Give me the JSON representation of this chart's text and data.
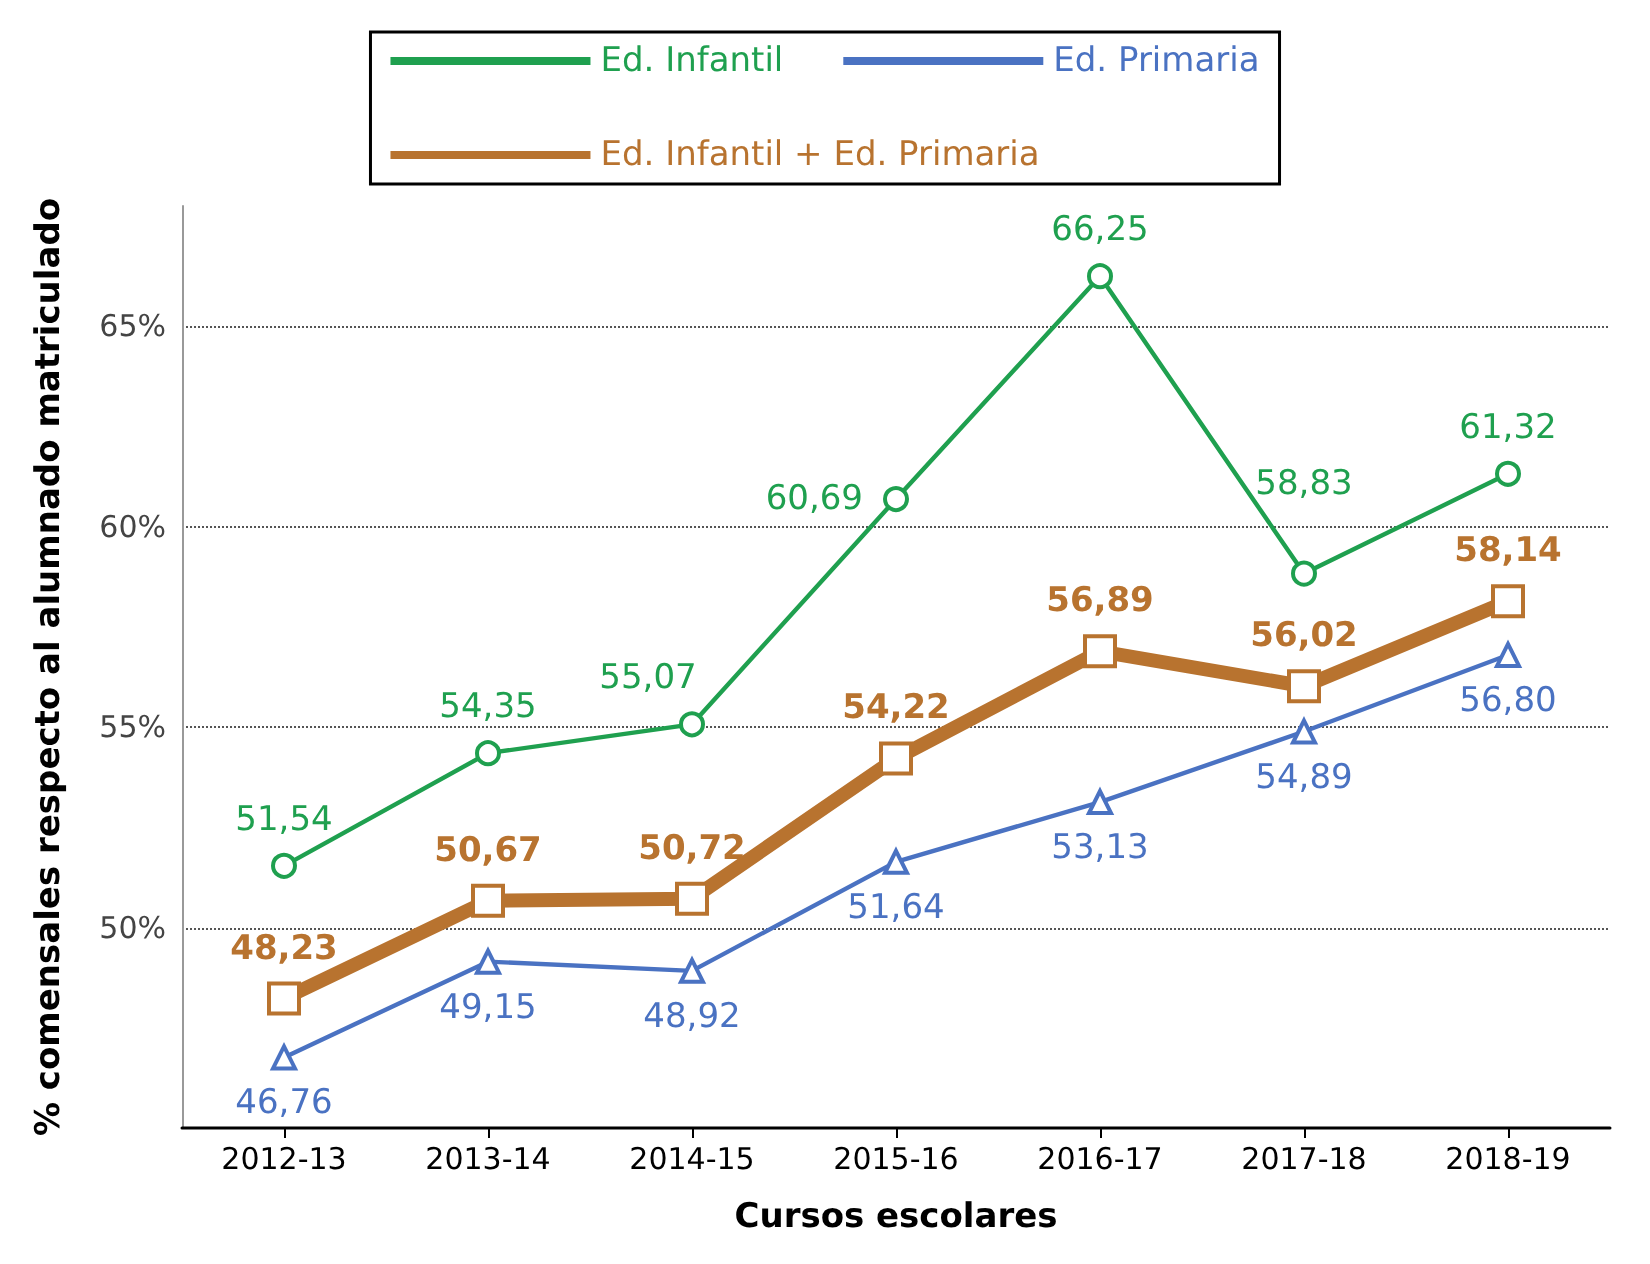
{
  "chart_data": {
    "type": "line",
    "xlabel": "Cursos escolares",
    "ylabel": "% comensales respecto al alumnado matriculado",
    "categories": [
      "2012-13",
      "2013-14",
      "2014-15",
      "2015-16",
      "2016-17",
      "2017-18",
      "2018-19"
    ],
    "series": [
      {
        "name": "Ed. Infantil",
        "color": "#1fa04f",
        "marker": "circle",
        "values": [
          51.54,
          54.35,
          55.07,
          60.69,
          66.25,
          58.83,
          61.32
        ],
        "value_labels": [
          "51,54",
          "54,35",
          "55,07",
          "60,69",
          "66,25",
          "58,83",
          "61,32"
        ]
      },
      {
        "name": "Ed. Primaria",
        "color": "#4a72c2",
        "marker": "triangle",
        "values": [
          46.76,
          49.15,
          48.92,
          51.64,
          53.13,
          54.89,
          56.8
        ],
        "value_labels": [
          "46,76",
          "49,15",
          "48,92",
          "51,64",
          "53,13",
          "54,89",
          "56,80"
        ]
      },
      {
        "name": "Ed. Infantil + Ed. Primaria",
        "color": "#b8732f",
        "marker": "square",
        "values": [
          48.23,
          50.67,
          50.72,
          54.22,
          56.89,
          56.02,
          58.14
        ],
        "value_labels": [
          "48,23",
          "50,67",
          "50,72",
          "54,22",
          "56,89",
          "56,02",
          "58,14"
        ]
      }
    ],
    "ylim": [
      45,
      68
    ],
    "yticks": [
      {
        "value": 50,
        "label": "50%"
      },
      {
        "value": 55,
        "label": "55%"
      },
      {
        "value": 60,
        "label": "60%"
      },
      {
        "value": 65,
        "label": "65%"
      }
    ],
    "grid": "y",
    "legend": "top",
    "line_style": "solid"
  }
}
